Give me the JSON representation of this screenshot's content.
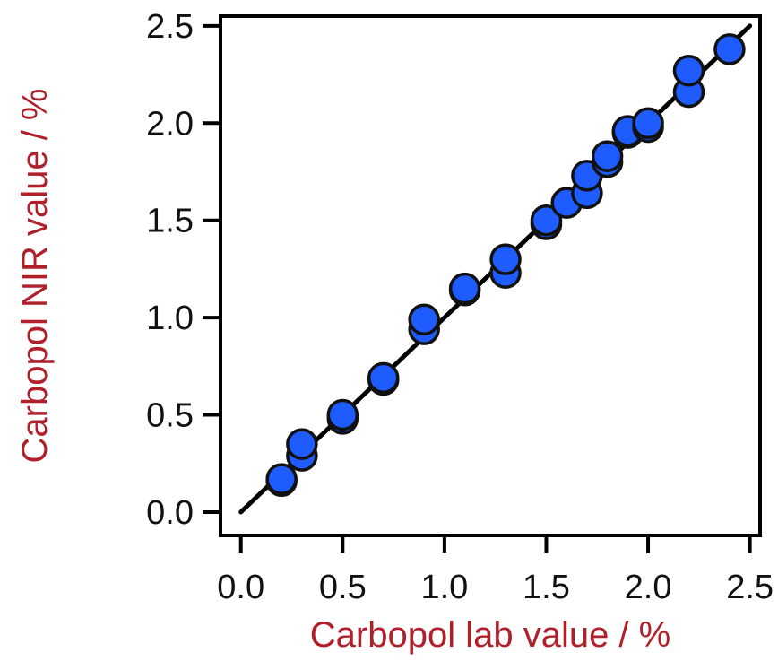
{
  "chart_data": {
    "type": "scatter",
    "xlabel": "Carbopol lab value / %",
    "ylabel": "Carbopol NIR value / %",
    "xlim": [
      -0.1,
      2.55
    ],
    "ylim": [
      -0.12,
      2.55
    ],
    "x_ticks": [
      "0.0",
      "0.5",
      "1.0",
      "1.5",
      "2.0",
      "2.5"
    ],
    "y_ticks": [
      "0.0",
      "0.5",
      "1.0",
      "1.5",
      "2.0",
      "2.5"
    ],
    "x_tick_values": [
      0,
      0.5,
      1.0,
      1.5,
      2.0,
      2.5
    ],
    "y_tick_values": [
      0,
      0.5,
      1.0,
      1.5,
      2.0,
      2.5
    ],
    "grid": false,
    "marker_color": "#1f5cff",
    "marker_edge_color": "#111111",
    "axis_title_color": "#b0202a",
    "points": [
      {
        "x": 0.2,
        "y": 0.16
      },
      {
        "x": 0.2,
        "y": 0.17
      },
      {
        "x": 0.3,
        "y": 0.29
      },
      {
        "x": 0.3,
        "y": 0.35
      },
      {
        "x": 0.5,
        "y": 0.48
      },
      {
        "x": 0.5,
        "y": 0.5
      },
      {
        "x": 0.7,
        "y": 0.68
      },
      {
        "x": 0.7,
        "y": 0.69
      },
      {
        "x": 0.9,
        "y": 0.94
      },
      {
        "x": 0.9,
        "y": 0.99
      },
      {
        "x": 1.1,
        "y": 1.14
      },
      {
        "x": 1.1,
        "y": 1.15
      },
      {
        "x": 1.3,
        "y": 1.23
      },
      {
        "x": 1.3,
        "y": 1.3
      },
      {
        "x": 1.5,
        "y": 1.48
      },
      {
        "x": 1.5,
        "y": 1.5
      },
      {
        "x": 1.6,
        "y": 1.59
      },
      {
        "x": 1.7,
        "y": 1.64
      },
      {
        "x": 1.7,
        "y": 1.73
      },
      {
        "x": 1.8,
        "y": 1.8
      },
      {
        "x": 1.8,
        "y": 1.83
      },
      {
        "x": 1.9,
        "y": 1.95
      },
      {
        "x": 1.9,
        "y": 1.96
      },
      {
        "x": 2.0,
        "y": 1.98
      },
      {
        "x": 2.0,
        "y": 2.0
      },
      {
        "x": 2.2,
        "y": 2.16
      },
      {
        "x": 2.2,
        "y": 2.27
      },
      {
        "x": 2.4,
        "y": 2.38
      }
    ],
    "fit_line": {
      "x": [
        0.0,
        2.5
      ],
      "y": [
        0.0,
        2.5
      ]
    }
  }
}
